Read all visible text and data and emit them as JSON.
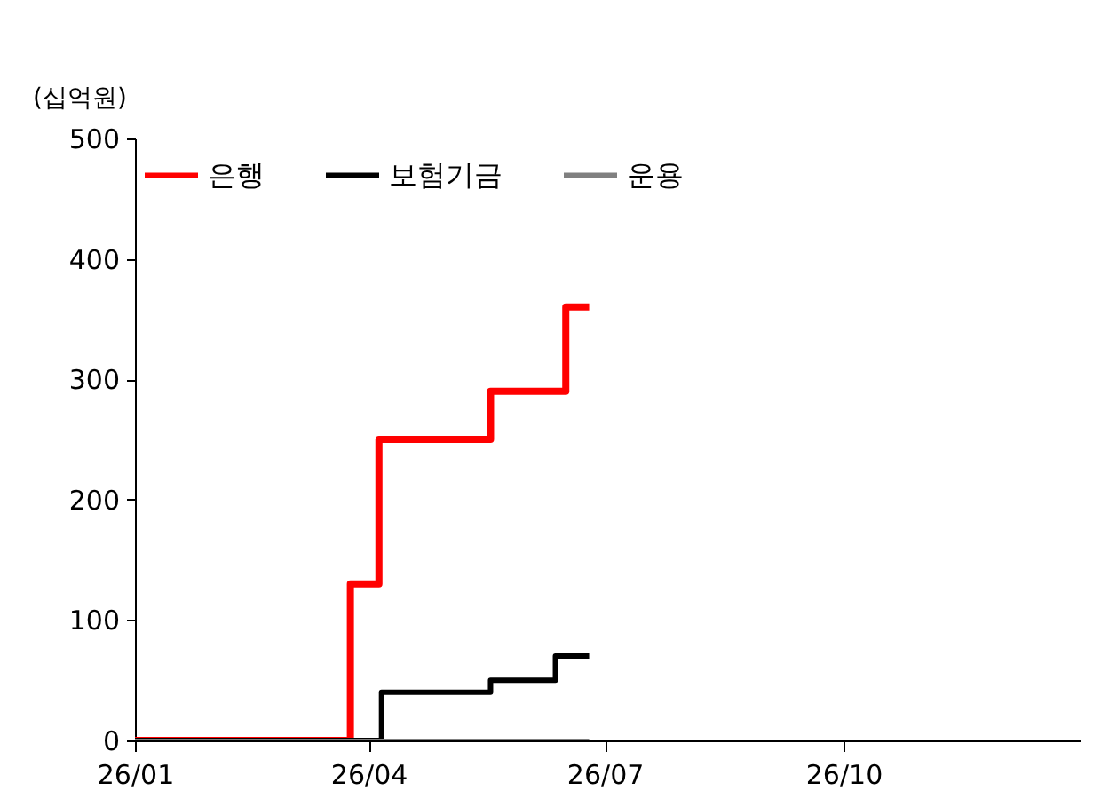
{
  "chart_data": {
    "type": "step",
    "ylabel": "(십억원)",
    "xlim": [
      "--01-01",
      "--12-31"
    ],
    "xticks": [
      {
        "value": "--01-01",
        "label": "26/01"
      },
      {
        "value": "--04-01",
        "label": "26/04"
      },
      {
        "value": "--07-01",
        "label": "26/07"
      },
      {
        "value": "--10-01",
        "label": "26/10"
      }
    ],
    "ylim": [
      0,
      500
    ],
    "yticks": [
      0,
      100,
      200,
      300,
      400,
      500
    ],
    "grid": false,
    "legend": "top left",
    "line_style": "solid",
    "series": [
      {
        "name": "은행",
        "color": "#ff0000",
        "x": [
          "--01-01",
          "--03-25",
          "--04-05",
          "--05-18",
          "--06-16",
          "--06-25"
        ],
        "values": [
          0,
          130,
          250,
          290,
          360,
          360
        ]
      },
      {
        "name": "보험기금",
        "color": "#000000",
        "x": [
          "--01-01",
          "--04-06",
          "--05-18",
          "--06-12",
          "--06-25"
        ],
        "values": [
          0,
          40,
          50,
          70,
          70
        ]
      },
      {
        "name": "운용",
        "color": "#808080",
        "x": [
          "--01-01",
          "--06-25"
        ],
        "values": [
          0,
          0
        ]
      }
    ]
  }
}
